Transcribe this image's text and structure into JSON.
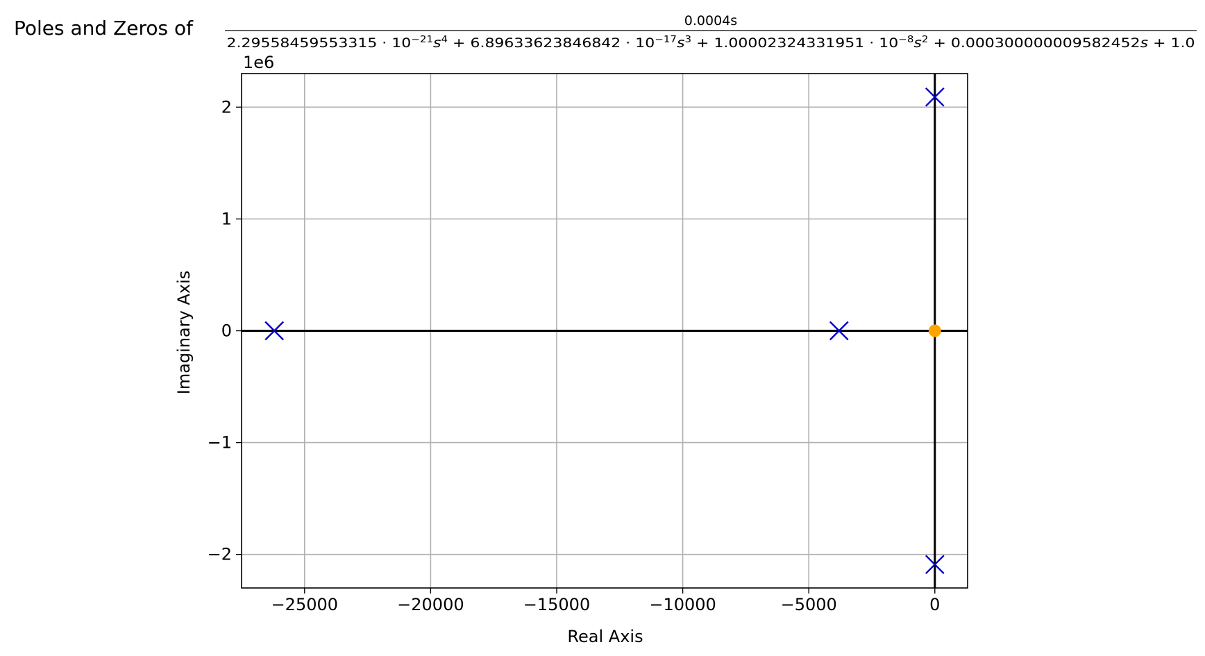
{
  "chart_data": {
    "type": "scatter",
    "title": {
      "prefix": "Poles and Zeros of",
      "numerator": "0.0004s",
      "denominator": [
        {
          "text": "2.29558459553315 · 10"
        },
        {
          "text": "−21",
          "sup": true
        },
        {
          "text": "s",
          "italic": true
        },
        {
          "text": "4",
          "sup": true
        },
        {
          "text": " + 6.89633623846842 · 10"
        },
        {
          "text": "−17",
          "sup": true
        },
        {
          "text": "s",
          "italic": true
        },
        {
          "text": "3",
          "sup": true
        },
        {
          "text": " + 1.00002324331951 · 10"
        },
        {
          "text": "−8",
          "sup": true
        },
        {
          "text": "s",
          "italic": true
        },
        {
          "text": "2",
          "sup": true
        },
        {
          "text": " + 0.00030000000958245"
        },
        {
          "text": "2"
        },
        {
          "text": "s",
          "italic": true
        },
        {
          "text": " + 1.0"
        }
      ]
    },
    "xlabel": "Real Axis",
    "ylabel": "Imaginary Axis",
    "y_offset_label": "1e6",
    "xlim": [
      -27500,
      1300
    ],
    "ylim": [
      -2300000,
      2300000
    ],
    "x_ticks": [
      -25000,
      -20000,
      -15000,
      -10000,
      -5000,
      0
    ],
    "x_tick_labels": [
      "−25000",
      "−20000",
      "−15000",
      "−10000",
      "−5000",
      "0"
    ],
    "y_ticks": [
      -2000000,
      -1000000,
      0,
      1000000,
      2000000
    ],
    "y_tick_labels": [
      "−2",
      "−1",
      "0",
      "1",
      "2"
    ],
    "grid": true,
    "series": [
      {
        "marker": "x",
        "color": "#0000cc",
        "points": [
          {
            "x": -26200,
            "y": 0
          },
          {
            "x": -3800,
            "y": 0
          },
          {
            "x": 0,
            "y": 2090000
          },
          {
            "x": 0,
            "y": -2090000
          }
        ]
      },
      {
        "marker": "o",
        "color": "#ffa500",
        "points": [
          {
            "x": 0,
            "y": 0
          }
        ]
      }
    ]
  }
}
